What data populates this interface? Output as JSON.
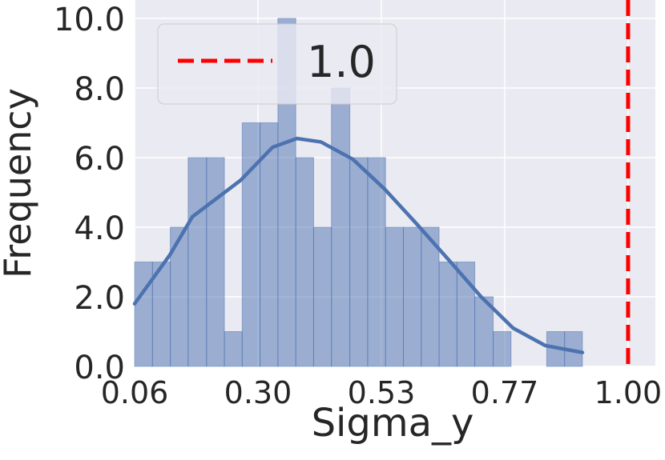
{
  "chart_data": {
    "type": "histogram",
    "x_label": "Sigma_y",
    "y_label": "Frequency",
    "bins": [
      0.06,
      0.094,
      0.128,
      0.162,
      0.197,
      0.231,
      0.265,
      0.299,
      0.333,
      0.367,
      0.401,
      0.435,
      0.47,
      0.504,
      0.538,
      0.572,
      0.606,
      0.64,
      0.674,
      0.708,
      0.743,
      0.777,
      0.811,
      0.845,
      0.879,
      0.913
    ],
    "counts": [
      3,
      3,
      4,
      6,
      6,
      1,
      7,
      7,
      10,
      6,
      4,
      8,
      6,
      6,
      4,
      4,
      4,
      3,
      3,
      2,
      1,
      0,
      0,
      1,
      1
    ],
    "color": "#4c72b0",
    "kde": {
      "x": [
        0.06,
        0.127,
        0.17,
        0.262,
        0.323,
        0.369,
        0.415,
        0.476,
        0.536,
        0.597,
        0.659,
        0.72,
        0.781,
        0.842,
        0.913
      ],
      "values": [
        1.8,
        3.2,
        4.3,
        5.35,
        6.3,
        6.55,
        6.45,
        5.95,
        5.1,
        4.1,
        3.05,
        2.0,
        1.1,
        0.6,
        0.4
      ],
      "color": "#4c72b0"
    },
    "reference_line": {
      "value": 1.0,
      "label": "1.0",
      "color": "#ff0000"
    },
    "xlim": [
      0.06,
      1.052
    ],
    "ylim": [
      0,
      10.53
    ],
    "xticks": [
      0.06,
      {
        "value": 0.295,
        "label": "0.30"
      },
      0.53,
      {
        "value": 0.765,
        "label": "0.77"
      },
      {
        "value": 1.0,
        "label": "1.00"
      }
    ],
    "yticks": [
      {
        "value": 0,
        "label": "0.0"
      },
      {
        "value": 2,
        "label": "2.0"
      },
      {
        "value": 4,
        "label": "4.0"
      },
      {
        "value": 6,
        "label": "6.0"
      },
      {
        "value": 8,
        "label": "8.0"
      },
      {
        "value": 10,
        "label": "10.0"
      }
    ],
    "grid": true,
    "background": "#eaeaf2",
    "legend": "upper left"
  }
}
